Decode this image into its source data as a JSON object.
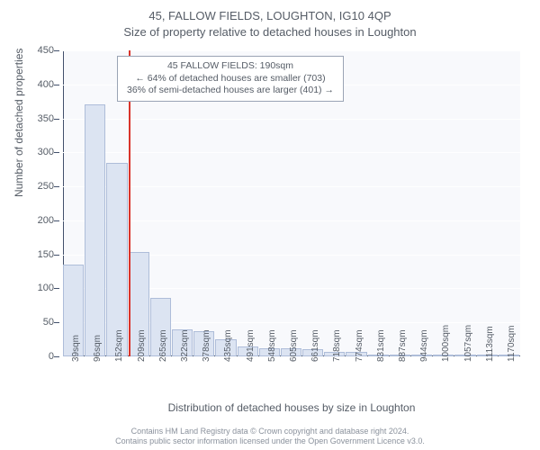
{
  "title": "45, FALLOW FIELDS, LOUGHTON, IG10 4QP",
  "subtitle": "Size of property relative to detached houses in Loughton",
  "chart": {
    "type": "bar",
    "background_color": "#f8f9fc",
    "bar_fill": "#dce4f2",
    "bar_border": "#aebdd9",
    "axis_color": "#42506b",
    "grid_color": "#ffffff",
    "text_color": "#555c66",
    "y_axis_title": "Number of detached properties",
    "x_axis_title": "Distribution of detached houses by size in Loughton",
    "ylim": [
      0,
      450
    ],
    "ytick_step": 50,
    "categories": [
      "39sqm",
      "96sqm",
      "152sqm",
      "209sqm",
      "265sqm",
      "322sqm",
      "378sqm",
      "435sqm",
      "491sqm",
      "548sqm",
      "605sqm",
      "661sqm",
      "718sqm",
      "774sqm",
      "831sqm",
      "887sqm",
      "944sqm",
      "1000sqm",
      "1057sqm",
      "1113sqm",
      "1170sqm"
    ],
    "values": [
      135,
      370,
      285,
      153,
      86,
      40,
      37,
      25,
      15,
      12,
      12,
      10,
      7,
      7,
      3,
      2,
      1,
      2,
      2,
      1,
      1
    ],
    "marker": {
      "category_index": 3,
      "position_fraction_within_bin": 0.0,
      "color": "#d9342b"
    },
    "callout": {
      "line1": "45 FALLOW FIELDS: 190sqm",
      "line2": "← 64% of detached houses are smaller (703)",
      "line3": "36% of semi-detached houses are larger (401) →",
      "border": "#9aa4b5",
      "bg": "#ffffff"
    }
  },
  "footer": {
    "line1": "Contains HM Land Registry data © Crown copyright and database right 2024.",
    "line2": "Contains public sector information licensed under the Open Government Licence v3.0."
  }
}
